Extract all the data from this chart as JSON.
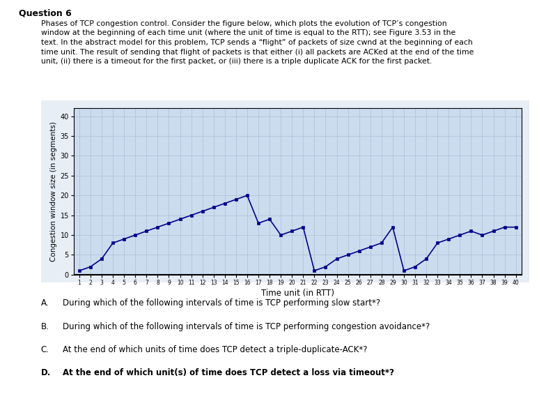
{
  "title": "Question 6",
  "desc": "Phases of TCP congestion control. Consider the figure below, which plots the evolution of TCP’s congestion window at the beginning of each time unit (where the unit of time is equal to the RTT); see Figure 3.53 in the text. In the abstract model for this problem, TCP sends a “flight” of packets of size cwnd at the beginning of each time unit. The result of sending that flight of packets is that either (i) all packets are ACKed at the end of the time unit, (ii) there is a timeout for the first packet, or (iii) there is a triple duplicate ACK for the first packet.",
  "ylabel": "Congestion window size (in segments)",
  "xlabel": "Time unit (in RTT)",
  "ylim": [
    0,
    42
  ],
  "yticks": [
    0,
    5,
    10,
    15,
    20,
    25,
    30,
    35,
    40
  ],
  "xlim": [
    0.5,
    40.5
  ],
  "xticks": [
    1,
    2,
    3,
    4,
    5,
    6,
    7,
    8,
    9,
    10,
    11,
    12,
    13,
    14,
    15,
    16,
    17,
    18,
    19,
    20,
    21,
    22,
    23,
    24,
    25,
    26,
    27,
    28,
    29,
    30,
    31,
    32,
    33,
    34,
    35,
    36,
    37,
    38,
    39,
    40
  ],
  "time": [
    1,
    2,
    3,
    4,
    5,
    6,
    7,
    8,
    9,
    10,
    11,
    12,
    13,
    14,
    15,
    16,
    17,
    18,
    19,
    20,
    21,
    22,
    23,
    24,
    25,
    26,
    27,
    28,
    29,
    30,
    31,
    32,
    33,
    34,
    35,
    36,
    37,
    38,
    39,
    40
  ],
  "cwnd": [
    1,
    2,
    4,
    8,
    9,
    10,
    11,
    12,
    13,
    14,
    15,
    16,
    17,
    18,
    19,
    20,
    13,
    14,
    10,
    11,
    12,
    1,
    2,
    4,
    5,
    6,
    7,
    8,
    12,
    1,
    2,
    4,
    8,
    9,
    10,
    11,
    10,
    11,
    12,
    12
  ],
  "line_color": "#00008B",
  "marker_color": "#00008B",
  "plot_bg": "#ccdcef",
  "grid_color": "#aabfd4",
  "outer_bg": "#e8eef5",
  "questions": [
    [
      "A.",
      "During which of the following intervals of time is TCP performing slow start*?",
      false
    ],
    [
      "B.",
      "During which of the following intervals of time is TCP performing congestion avoidance*?",
      false
    ],
    [
      "C.",
      "At the end of which units of time does TCP detect a triple-duplicate-ACK*?",
      false
    ],
    [
      "D.",
      "At the end of which unit(s) of time does TCP detect a loss via timeout*?",
      true
    ]
  ]
}
